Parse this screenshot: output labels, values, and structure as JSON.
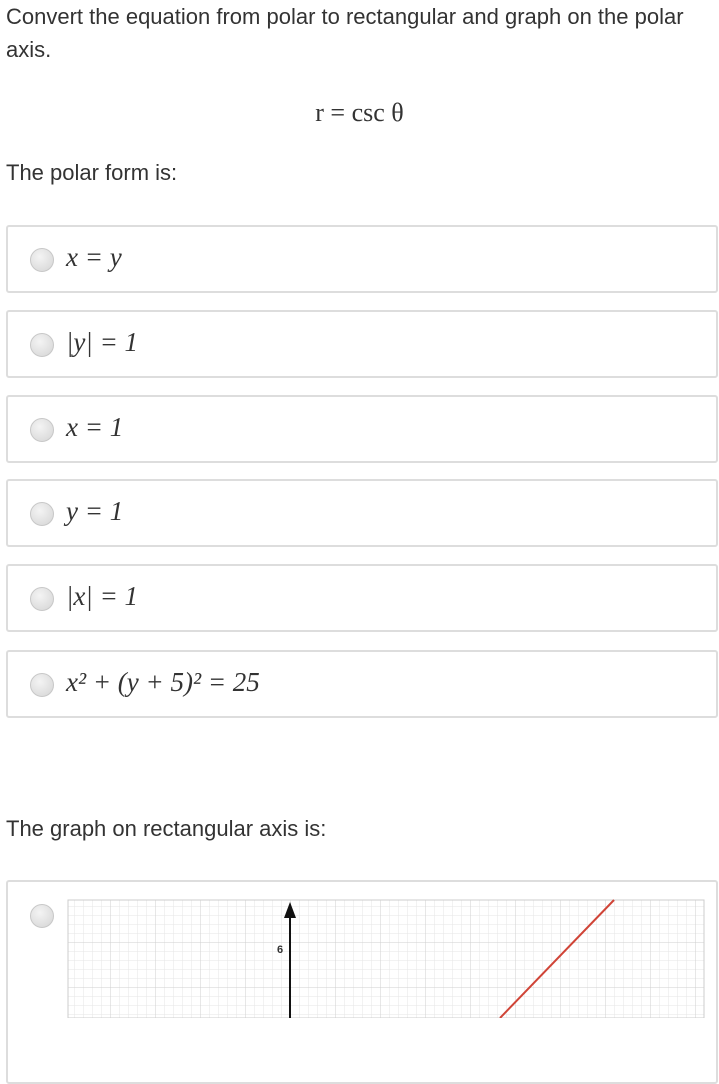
{
  "question": "Convert the equation from polar to rectangular and graph on the polar axis.",
  "equation": "r = csc θ",
  "polar_prompt": "The polar form is:",
  "options": [
    "x = y",
    "|y| = 1",
    "x = 1",
    "y = 1",
    "|x| = 1",
    "x² + (y + 5)² = 25"
  ],
  "graph_prompt": "The graph on rectangular axis is:",
  "graph_tick_label": "6"
}
